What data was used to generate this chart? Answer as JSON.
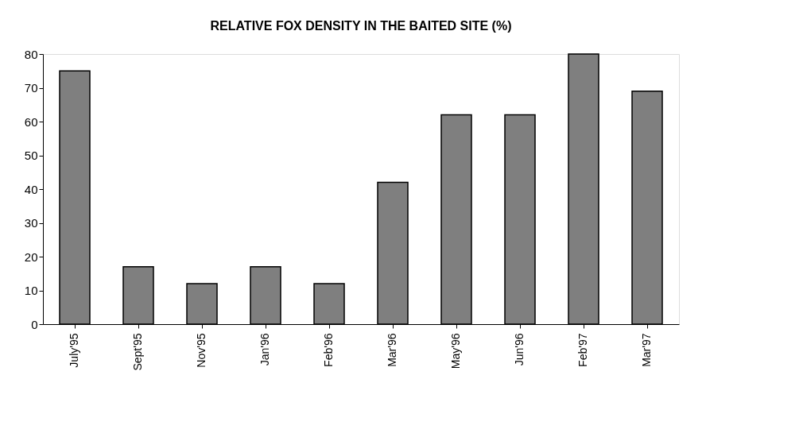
{
  "chart_data": {
    "type": "bar",
    "title": "RELATIVE FOX DENSITY IN THE BAITED SITE (%)",
    "categories": [
      "July'95",
      "Sept'95",
      "Nov'95",
      "Jan'96",
      "Feb'96",
      "Mar'96",
      "May'96",
      "Jun'96",
      "Feb'97",
      "Mar'97"
    ],
    "values": [
      75,
      17,
      12,
      17,
      12,
      42,
      62,
      62,
      80,
      69
    ],
    "color": "#7f7f7f",
    "ylim": [
      0,
      80
    ],
    "yticks": [
      0,
      10,
      20,
      30,
      40,
      50,
      60,
      70,
      80
    ],
    "grid": false
  }
}
